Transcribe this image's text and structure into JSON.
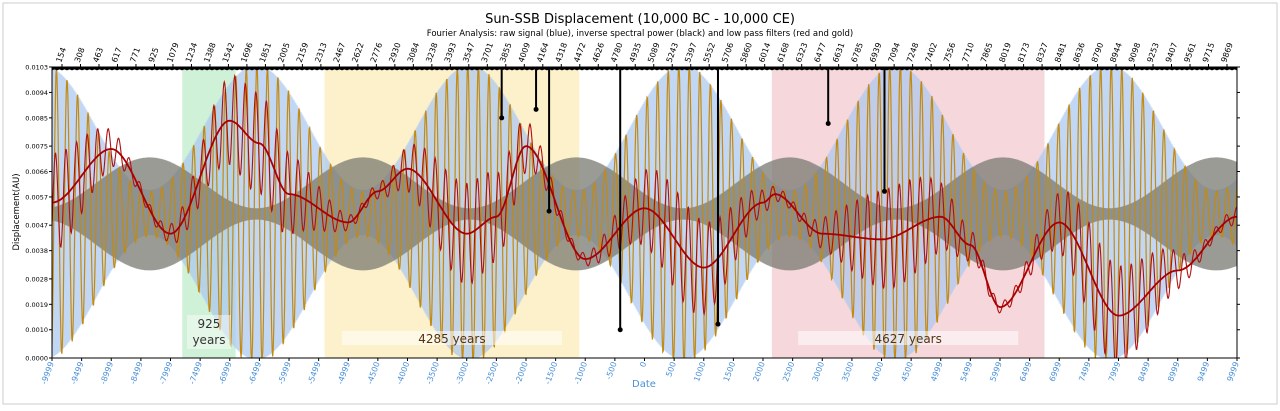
{
  "chart_data": {
    "type": "line",
    "title": "Sun-SSB Displacement (10,000 BC - 10,000 CE)",
    "subtitle": "Fourier Analysis: raw signal (blue), inverse spectral power (black) and low pass filters (red and gold)",
    "xlabel": "Date",
    "ylabel": "Displacement(AU)",
    "xlim": [
      -9999,
      9999
    ],
    "ylim": [
      0,
      0.0103
    ],
    "y_ticks": [
      "0.0000",
      "0.0010",
      "0.0019",
      "0.0028",
      "0.0038",
      "0.0047",
      "0.0057",
      "0.0066",
      "0.0075",
      "0.0085",
      "0.0094",
      "0.0103"
    ],
    "x_ticks": [
      "-9999",
      "-9499",
      "-8999",
      "-8499",
      "-7999",
      "-7499",
      "-6999",
      "-6499",
      "-5999",
      "-5499",
      "-4999",
      "-4500",
      "-4000",
      "-3500",
      "-3000",
      "-2500",
      "-2000",
      "-1500",
      "-1000",
      "-500",
      "0",
      "500",
      "1000",
      "1500",
      "2000",
      "2500",
      "3000",
      "3500",
      "4000",
      "4500",
      "4999",
      "5499",
      "5999",
      "6499",
      "6999",
      "7499",
      "7999",
      "8499",
      "8999",
      "9499",
      "9999"
    ],
    "period_ticks": [
      "154",
      "308",
      "463",
      "617",
      "771",
      "925",
      "1079",
      "1234",
      "1388",
      "1542",
      "1696",
      "1851",
      "2005",
      "2159",
      "2313",
      "2467",
      "2622",
      "2776",
      "2930",
      "3084",
      "3238",
      "3393",
      "3547",
      "3701",
      "3855",
      "4009",
      "4164",
      "4318",
      "4472",
      "4626",
      "4780",
      "4935",
      "5089",
      "5243",
      "5397",
      "5552",
      "5706",
      "5860",
      "6014",
      "6168",
      "6323",
      "6477",
      "6631",
      "6785",
      "6939",
      "7094",
      "7248",
      "7402",
      "7556",
      "7710",
      "7865",
      "8019",
      "8173",
      "8327",
      "8481",
      "8636",
      "8790",
      "8944",
      "9098",
      "9253",
      "9407",
      "9561",
      "9715",
      "9869"
    ],
    "regions": [
      {
        "label": "925",
        "label2": "years",
        "x0": -7800,
        "x1": -6900,
        "color": "#a8e6b8"
      },
      {
        "label": "4285 years",
        "x0": -5400,
        "x1": -1100,
        "color": "#fbe6a0"
      },
      {
        "label": "4627 years",
        "x0": 2150,
        "x1": 6750,
        "color": "#eeb8c0"
      }
    ],
    "series": [
      {
        "role": "raw signal",
        "color": "#aac8f0"
      },
      {
        "role": "inverse spectral power",
        "color": "#000000"
      },
      {
        "role": "low pass filter",
        "color": "#c48a10"
      },
      {
        "role": "low pass filter",
        "color": "#b01010"
      },
      {
        "role": "low pass filter",
        "color": "#a80000"
      }
    ],
    "smooth_red": {
      "x": [
        -9999,
        -9000,
        -8000,
        -7000,
        -6500,
        -6000,
        -5000,
        -4500,
        -4000,
        -3000,
        -2500,
        -2000,
        -1000,
        0,
        1000,
        2000,
        2200,
        3000,
        4000,
        5000,
        5500,
        6000,
        7000,
        8000,
        9000,
        9999
      ],
      "y": [
        0.0055,
        0.0074,
        0.0044,
        0.0084,
        0.0076,
        0.0058,
        0.0048,
        0.0059,
        0.0067,
        0.0044,
        0.005,
        0.0075,
        0.0035,
        0.0053,
        0.0032,
        0.0055,
        0.0058,
        0.0044,
        0.0042,
        0.005,
        0.004,
        0.0018,
        0.0048,
        0.0015,
        0.0031,
        0.005
      ]
    },
    "spikes": [
      {
        "x": -2410,
        "y": 0.0085
      },
      {
        "x": -1830,
        "y": 0.0088
      },
      {
        "x": -1610,
        "y": 0.0052
      },
      {
        "x": -410,
        "y": 0.001
      },
      {
        "x": 1240,
        "y": 0.0012
      },
      {
        "x": 3100,
        "y": 0.0083
      },
      {
        "x": 4050,
        "y": 0.0059
      }
    ]
  }
}
